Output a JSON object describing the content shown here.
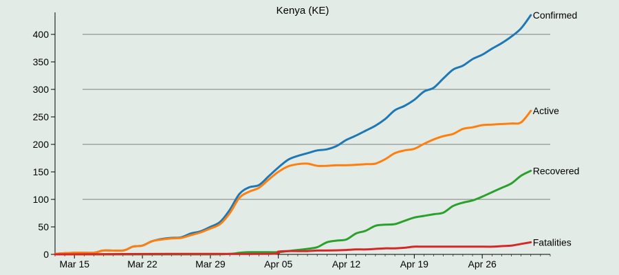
{
  "chart_data": {
    "type": "line",
    "title": "Kenya (KE)",
    "xlabel": "",
    "ylabel": "",
    "x_start": "Mar 13",
    "x_end": "May 3",
    "ylim": [
      0,
      440
    ],
    "y_ticks": [
      0,
      50,
      100,
      150,
      200,
      250,
      300,
      350,
      400
    ],
    "y_gridlines": [
      100,
      200,
      300,
      400
    ],
    "x_ticks": [
      {
        "date": "Mar 15",
        "label": "Mar 15"
      },
      {
        "date": "Mar 22",
        "label": "Mar 22"
      },
      {
        "date": "Mar 29",
        "label": "Mar 29"
      },
      {
        "date": "Apr 05",
        "label": "Apr 05"
      },
      {
        "date": "Apr 12",
        "label": "Apr 12"
      },
      {
        "date": "Apr 19",
        "label": "Apr 19"
      },
      {
        "date": "Apr 26",
        "label": "Apr 26"
      }
    ],
    "grid": "horizontal",
    "legend": "end-of-line labels",
    "series": [
      {
        "name": "Confirmed",
        "color": "#1f77b4",
        "points": [
          [
            "Mar 13",
            1
          ],
          [
            "Mar 15",
            3
          ],
          [
            "Mar 17",
            3
          ],
          [
            "Mar 18",
            7
          ],
          [
            "Mar 20",
            7
          ],
          [
            "Mar 21",
            14
          ],
          [
            "Mar 22",
            16
          ],
          [
            "Mar 23",
            24
          ],
          [
            "Mar 24",
            28
          ],
          [
            "Mar 25",
            30
          ],
          [
            "Mar 26",
            31
          ],
          [
            "Mar 27",
            38
          ],
          [
            "Mar 28",
            42
          ],
          [
            "Mar 29",
            50
          ],
          [
            "Mar 30",
            59
          ],
          [
            "Mar 31",
            81
          ],
          [
            "Apr 01",
            110
          ],
          [
            "Apr 02",
            122
          ],
          [
            "Apr 03",
            126
          ],
          [
            "Apr 04",
            142
          ],
          [
            "Apr 05",
            158
          ],
          [
            "Apr 06",
            172
          ],
          [
            "Apr 07",
            179
          ],
          [
            "Apr 08",
            184
          ],
          [
            "Apr 09",
            189
          ],
          [
            "Apr 10",
            191
          ],
          [
            "Apr 11",
            197
          ],
          [
            "Apr 12",
            208
          ],
          [
            "Apr 13",
            216
          ],
          [
            "Apr 14",
            225
          ],
          [
            "Apr 15",
            234
          ],
          [
            "Apr 16",
            246
          ],
          [
            "Apr 17",
            262
          ],
          [
            "Apr 18",
            270
          ],
          [
            "Apr 19",
            281
          ],
          [
            "Apr 20",
            296
          ],
          [
            "Apr 21",
            303
          ],
          [
            "Apr 22",
            320
          ],
          [
            "Apr 23",
            336
          ],
          [
            "Apr 24",
            343
          ],
          [
            "Apr 25",
            355
          ],
          [
            "Apr 26",
            363
          ],
          [
            "Apr 27",
            374
          ],
          [
            "Apr 28",
            384
          ],
          [
            "Apr 29",
            396
          ],
          [
            "Apr 30",
            411
          ],
          [
            "May 01",
            435
          ]
        ]
      },
      {
        "name": "Active",
        "color": "#ff7f0e",
        "points": [
          [
            "Mar 13",
            1
          ],
          [
            "Mar 15",
            3
          ],
          [
            "Mar 17",
            3
          ],
          [
            "Mar 18",
            7
          ],
          [
            "Mar 20",
            7
          ],
          [
            "Mar 21",
            14
          ],
          [
            "Mar 22",
            16
          ],
          [
            "Mar 23",
            24
          ],
          [
            "Mar 24",
            27
          ],
          [
            "Mar 25",
            29
          ],
          [
            "Mar 26",
            30
          ],
          [
            "Mar 27",
            35
          ],
          [
            "Mar 28",
            40
          ],
          [
            "Mar 29",
            47
          ],
          [
            "Mar 30",
            55
          ],
          [
            "Mar 31",
            75
          ],
          [
            "Apr 01",
            103
          ],
          [
            "Apr 02",
            114
          ],
          [
            "Apr 03",
            121
          ],
          [
            "Apr 04",
            136
          ],
          [
            "Apr 05",
            150
          ],
          [
            "Apr 06",
            160
          ],
          [
            "Apr 07",
            164
          ],
          [
            "Apr 08",
            165
          ],
          [
            "Apr 09",
            161
          ],
          [
            "Apr 10",
            161
          ],
          [
            "Apr 11",
            162
          ],
          [
            "Apr 12",
            162
          ],
          [
            "Apr 13",
            163
          ],
          [
            "Apr 14",
            164
          ],
          [
            "Apr 15",
            165
          ],
          [
            "Apr 16",
            173
          ],
          [
            "Apr 17",
            184
          ],
          [
            "Apr 18",
            189
          ],
          [
            "Apr 19",
            192
          ],
          [
            "Apr 20",
            201
          ],
          [
            "Apr 21",
            209
          ],
          [
            "Apr 22",
            215
          ],
          [
            "Apr 23",
            219
          ],
          [
            "Apr 24",
            228
          ],
          [
            "Apr 25",
            231
          ],
          [
            "Apr 26",
            235
          ],
          [
            "Apr 27",
            236
          ],
          [
            "Apr 28",
            237
          ],
          [
            "Apr 29",
            238
          ],
          [
            "Apr 30",
            240
          ],
          [
            "May 01",
            261
          ]
        ]
      },
      {
        "name": "Recovered",
        "color": "#2ca02c",
        "points": [
          [
            "Mar 13",
            0
          ],
          [
            "Mar 28",
            0
          ],
          [
            "Mar 31",
            1
          ],
          [
            "Apr 01",
            3
          ],
          [
            "Apr 02",
            4
          ],
          [
            "Apr 04",
            4
          ],
          [
            "Apr 05",
            4
          ],
          [
            "Apr 06",
            6
          ],
          [
            "Apr 07",
            8
          ],
          [
            "Apr 08",
            10
          ],
          [
            "Apr 09",
            13
          ],
          [
            "Apr 10",
            22
          ],
          [
            "Apr 11",
            25
          ],
          [
            "Apr 12",
            27
          ],
          [
            "Apr 13",
            38
          ],
          [
            "Apr 14",
            43
          ],
          [
            "Apr 15",
            52
          ],
          [
            "Apr 16",
            54
          ],
          [
            "Apr 17",
            55
          ],
          [
            "Apr 18",
            61
          ],
          [
            "Apr 19",
            67
          ],
          [
            "Apr 20",
            70
          ],
          [
            "Apr 21",
            73
          ],
          [
            "Apr 22",
            76
          ],
          [
            "Apr 23",
            88
          ],
          [
            "Apr 24",
            94
          ],
          [
            "Apr 25",
            98
          ],
          [
            "Apr 26",
            105
          ],
          [
            "Apr 27",
            113
          ],
          [
            "Apr 28",
            121
          ],
          [
            "Apr 29",
            129
          ],
          [
            "Apr 30",
            143
          ],
          [
            "May 01",
            152
          ]
        ]
      },
      {
        "name": "Fatalities",
        "color": "#d62728",
        "points": [
          [
            "Mar 13",
            0
          ],
          [
            "Mar 25",
            1
          ],
          [
            "Apr 04",
            1
          ],
          [
            "Apr 05",
            5
          ],
          [
            "Apr 06",
            6
          ],
          [
            "Apr 07",
            6
          ],
          [
            "Apr 08",
            6
          ],
          [
            "Apr 09",
            7
          ],
          [
            "Apr 10",
            7
          ],
          [
            "Apr 12",
            8
          ],
          [
            "Apr 13",
            9
          ],
          [
            "Apr 14",
            9
          ],
          [
            "Apr 15",
            10
          ],
          [
            "Apr 16",
            11
          ],
          [
            "Apr 17",
            11
          ],
          [
            "Apr 18",
            12
          ],
          [
            "Apr 19",
            14
          ],
          [
            "Apr 20",
            14
          ],
          [
            "Apr 26",
            14
          ],
          [
            "Apr 27",
            14
          ],
          [
            "Apr 28",
            15
          ],
          [
            "Apr 29",
            16
          ],
          [
            "Apr 30",
            19
          ],
          [
            "May 01",
            22
          ]
        ]
      }
    ]
  }
}
